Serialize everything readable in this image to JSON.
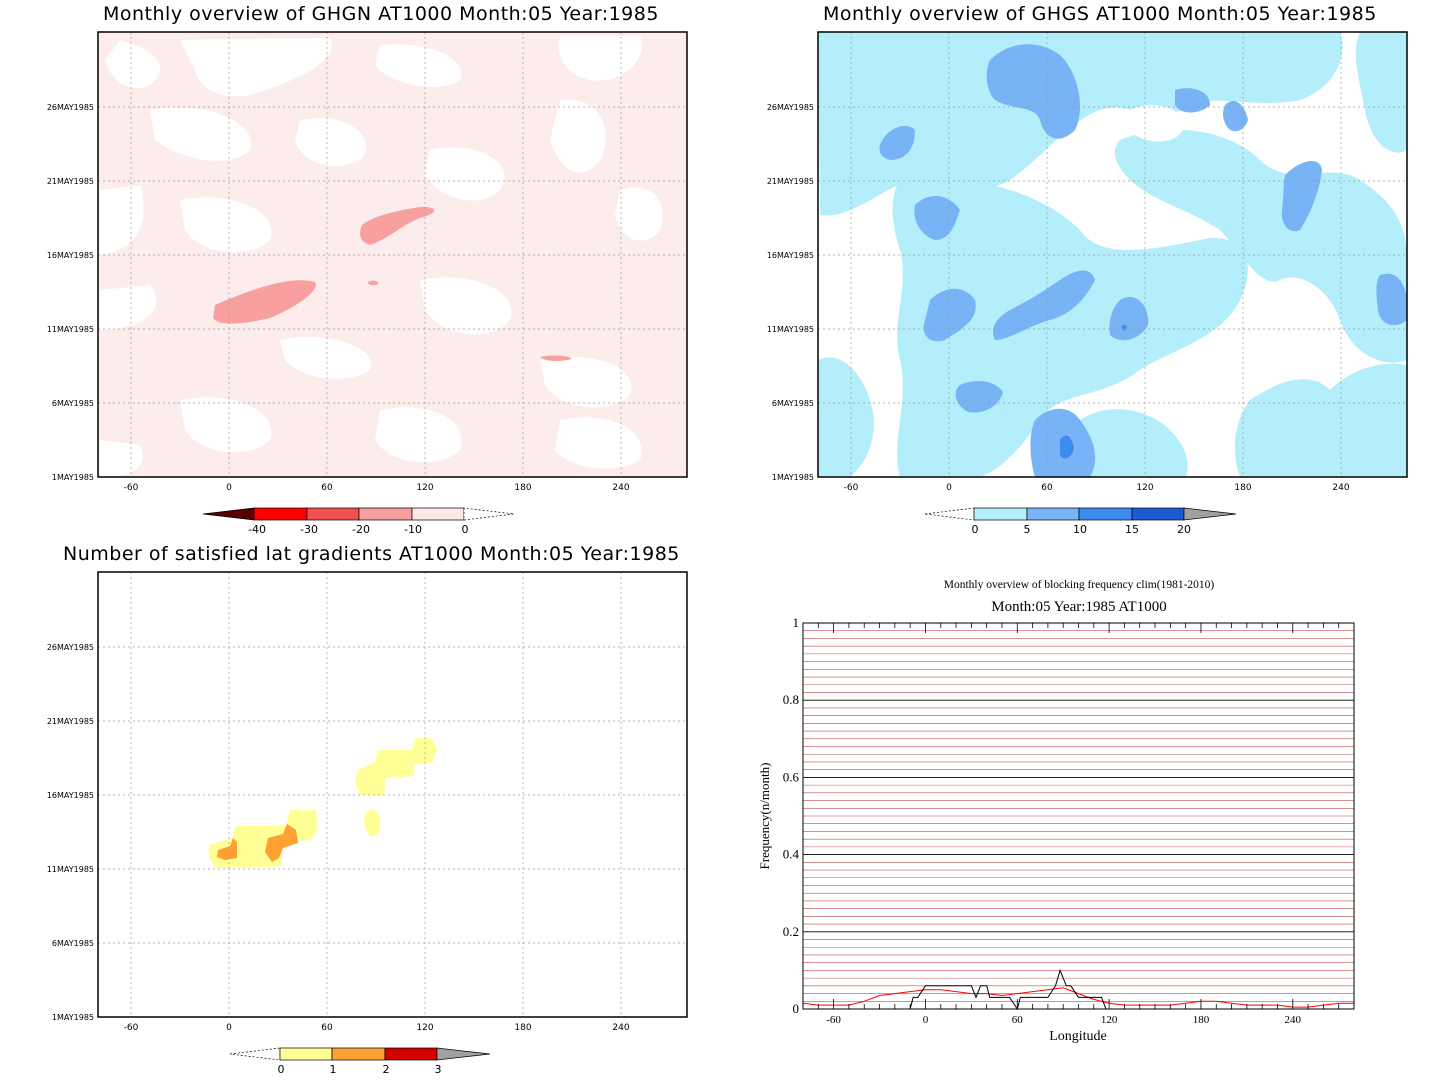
{
  "panels": {
    "ghgn": {
      "title": "Monthly overview of GHGN AT1000 Month:05 Year:1985",
      "yticks": [
        "1MAY1985",
        "6MAY1985",
        "11MAY1985",
        "16MAY1985",
        "21MAY1985",
        "26MAY1985"
      ],
      "xticks": [
        "-60",
        "0",
        "60",
        "120",
        "180",
        "240"
      ],
      "colorbar": {
        "labels": [
          "-40",
          "-30",
          "-20",
          "-10",
          "0"
        ],
        "colors": [
          "#5a0000",
          "#ff0000",
          "#f25050",
          "#f7a0a0",
          "#fde8e8"
        ]
      }
    },
    "ghgs": {
      "title": "Monthly overview of GHGS AT1000 Month:05 Year:1985",
      "yticks": [
        "1MAY1985",
        "6MAY1985",
        "11MAY1985",
        "16MAY1985",
        "21MAY1985",
        "26MAY1985"
      ],
      "xticks": [
        "-60",
        "0",
        "60",
        "120",
        "180",
        "240"
      ],
      "colorbar": {
        "labels": [
          "0",
          "5",
          "10",
          "15",
          "20"
        ],
        "colors": [
          "#b4eefa",
          "#78b4f5",
          "#3c8cf0",
          "#1e5ad2",
          "#a0a0a0"
        ]
      }
    },
    "gradients": {
      "title": "Number of satisfied lat gradients AT1000 Month:05 Year:1985",
      "yticks": [
        "1MAY1985",
        "6MAY1985",
        "11MAY1985",
        "16MAY1985",
        "21MAY1985",
        "26MAY1985"
      ],
      "xticks": [
        "-60",
        "0",
        "60",
        "120",
        "180",
        "240"
      ],
      "colorbar": {
        "labels": [
          "0",
          "1",
          "2",
          "3"
        ],
        "colors": [
          "#ffff96",
          "#ffa032",
          "#d20000",
          "#a0a0a0"
        ]
      }
    },
    "frequency": {
      "title": "Monthly overview of blocking frequency clim(1981-2010)",
      "subtitle": "Month:05 Year:1985  AT1000",
      "ylabel": "Frequency(n/month)",
      "xlabel": "Longitude"
    }
  },
  "chart_data": [
    {
      "type": "heatmap",
      "title": "Monthly overview of GHGN AT1000 Month:05 Year:1985",
      "x_range": [
        -80,
        280
      ],
      "y_range": [
        "1MAY1985",
        "31MAY1985"
      ],
      "levels": [
        -40,
        -30,
        -20,
        -10,
        0
      ],
      "features": [
        {
          "lon_center": 30,
          "date": "12MAY1985",
          "value_range": [
            -20,
            -10
          ]
        },
        {
          "lon_center": 100,
          "date": "18MAY1985",
          "value_range": [
            -20,
            -10
          ]
        },
        {
          "lon_center": 190,
          "date": "8MAY1985",
          "value_range": [
            -20,
            -10
          ]
        }
      ]
    },
    {
      "type": "heatmap",
      "title": "Monthly overview of GHGS AT1000 Month:05 Year:1985",
      "x_range": [
        -80,
        280
      ],
      "y_range": [
        "1MAY1985",
        "31MAY1985"
      ],
      "levels": [
        0,
        5,
        10,
        15,
        20
      ],
      "features": [
        {
          "lon_center": 70,
          "date": "3MAY1985",
          "value_range": [
            15,
            20
          ]
        },
        {
          "lon_center": 70,
          "date": "28MAY1985",
          "value_range": [
            5,
            10
          ]
        },
        {
          "lon_center": 225,
          "date": "19MAY1985",
          "value_range": [
            5,
            10
          ]
        }
      ]
    },
    {
      "type": "heatmap",
      "title": "Number of satisfied lat gradients AT1000 Month:05 Year:1985",
      "x_range": [
        -80,
        280
      ],
      "y_range": [
        "1MAY1985",
        "31MAY1985"
      ],
      "levels": [
        0,
        1,
        2,
        3
      ],
      "features": [
        {
          "lon_center": 0,
          "date": "12MAY1985",
          "value": 2
        },
        {
          "lon_center": 35,
          "date": "13MAY1985",
          "value": 2
        },
        {
          "lon_center": 110,
          "date": "18MAY1985",
          "value": 1
        }
      ]
    },
    {
      "type": "line",
      "title": "Monthly overview of blocking frequency clim(1981-2010)",
      "subtitle": "Month:05 Year:1985  AT1000",
      "xlabel": "Longitude",
      "ylabel": "Frequency(n/month)",
      "xlim": [
        -80,
        280
      ],
      "ylim": [
        0,
        1
      ],
      "xticks": [
        -60,
        0,
        60,
        120,
        180,
        240
      ],
      "yticks": [
        0,
        0.2,
        0.4,
        0.6,
        0.8,
        1
      ],
      "series": [
        {
          "color": "#ff0000",
          "x": [
            -80,
            -70,
            -60,
            -50,
            -40,
            -30,
            -20,
            -10,
            0,
            10,
            20,
            30,
            40,
            50,
            60,
            70,
            80,
            90,
            100,
            110,
            120,
            130,
            140,
            150,
            160,
            170,
            180,
            190,
            200,
            210,
            220,
            230,
            240,
            250,
            260,
            270,
            280
          ],
          "y": [
            0.015,
            0.01,
            0.01,
            0.01,
            0.02,
            0.035,
            0.04,
            0.045,
            0.05,
            0.05,
            0.045,
            0.04,
            0.04,
            0.035,
            0.04,
            0.045,
            0.05,
            0.055,
            0.04,
            0.025,
            0.015,
            0.01,
            0.01,
            0.01,
            0.01,
            0.015,
            0.02,
            0.02,
            0.015,
            0.01,
            0.01,
            0.01,
            0.005,
            0.005,
            0.01,
            0.015,
            0.015
          ]
        },
        {
          "color": "#000000",
          "x": [
            -80,
            -10,
            -8,
            -5,
            0,
            10,
            20,
            30,
            33,
            36,
            40,
            42,
            45,
            50,
            55,
            60,
            62,
            70,
            80,
            85,
            88,
            92,
            95,
            100,
            110,
            115,
            118,
            120,
            280
          ],
          "y": [
            0,
            0,
            0.03,
            0.03,
            0.06,
            0.06,
            0.06,
            0.06,
            0.03,
            0.06,
            0.06,
            0.03,
            0.03,
            0.03,
            0.03,
            0.0,
            0.03,
            0.03,
            0.03,
            0.06,
            0.1,
            0.06,
            0.06,
            0.03,
            0.03,
            0.03,
            0.0,
            0.0,
            0.0
          ]
        }
      ]
    }
  ]
}
